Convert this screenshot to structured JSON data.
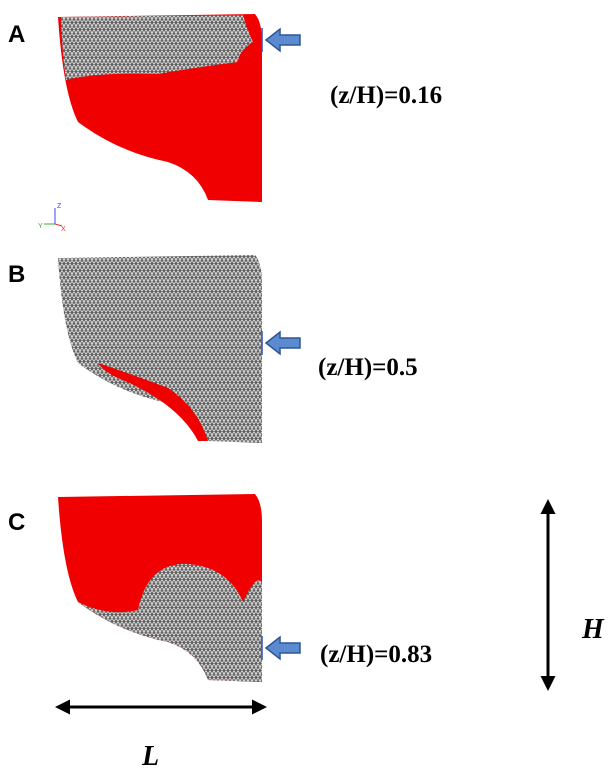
{
  "panels": [
    {
      "label": "A",
      "annotation": "(z/H)=0.16"
    },
    {
      "label": "B",
      "annotation": "(z/H)=0.5"
    },
    {
      "label": "C",
      "annotation": "(z/H)=0.83"
    }
  ],
  "triad": {
    "z": "Z",
    "y": "Y",
    "x": "X"
  },
  "dimensions": {
    "height": "H",
    "length": "L"
  }
}
